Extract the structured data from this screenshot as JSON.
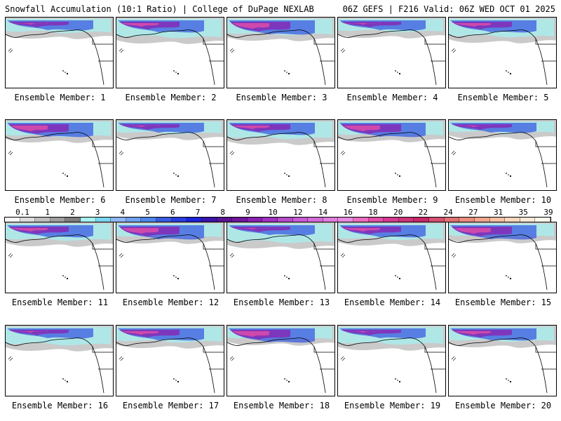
{
  "header": {
    "title_left": "Snowfall Accumulation (10:1 Ratio) | College of DuPage NEXLAB",
    "title_right": "06Z GEFS | F216 Valid: 06Z WED OCT 01 2025"
  },
  "panels": [
    {
      "label": "Ensemble Member: 1"
    },
    {
      "label": "Ensemble Member: 2"
    },
    {
      "label": "Ensemble Member: 3"
    },
    {
      "label": "Ensemble Member: 4"
    },
    {
      "label": "Ensemble Member: 5"
    },
    {
      "label": "Ensemble Member: 6"
    },
    {
      "label": "Ensemble Member: 7"
    },
    {
      "label": "Ensemble Member: 8"
    },
    {
      "label": "Ensemble Member: 9"
    },
    {
      "label": "Ensemble Member: 10"
    },
    {
      "label": "Ensemble Member: 11"
    },
    {
      "label": "Ensemble Member: 12"
    },
    {
      "label": "Ensemble Member: 13"
    },
    {
      "label": "Ensemble Member: 14"
    },
    {
      "label": "Ensemble Member: 15"
    },
    {
      "label": "Ensemble Member: 16"
    },
    {
      "label": "Ensemble Member: 17"
    },
    {
      "label": "Ensemble Member: 18"
    },
    {
      "label": "Ensemble Member: 19"
    },
    {
      "label": "Ensemble Member: 20"
    }
  ],
  "colorbar": {
    "labels": [
      "0.1",
      "1",
      "2",
      "3",
      "4",
      "5",
      "6",
      "7",
      "8",
      "9",
      "10",
      "12",
      "14",
      "16",
      "18",
      "20",
      "22",
      "24",
      "27",
      "31",
      "35",
      "39"
    ],
    "colors": [
      "#f4f4f4",
      "#dcdcdc",
      "#bdbdbd",
      "#9e9e9e",
      "#7e7e7e",
      "#a6f0f0",
      "#78d7ee",
      "#8fb6f2",
      "#6fa0ee",
      "#4c86ea",
      "#3a5be0",
      "#2a3ee0",
      "#1e22d6",
      "#3c14a8",
      "#5a1490",
      "#70169c",
      "#8a20b0",
      "#a030c0",
      "#b64ac8",
      "#c85ad4",
      "#d46ad8",
      "#de7edc",
      "#e68ae0",
      "#ea6cbe",
      "#e24ea6",
      "#d43a8e",
      "#cc3478",
      "#c82868",
      "#d25070",
      "#e07070",
      "#ea8c7e",
      "#f0a68e",
      "#f6c0a4",
      "#f8d6bc",
      "#fae8d6",
      "#fdf6ec"
    ]
  },
  "legend_colors": {
    "map_bg": "#ffffff",
    "snow_grey": "#bdbdbd",
    "snow_cyan": "#a6f0f0",
    "snow_blue": "#3a5be0",
    "snow_purple": "#8a20b0",
    "snow_magenta": "#e24ea6"
  }
}
